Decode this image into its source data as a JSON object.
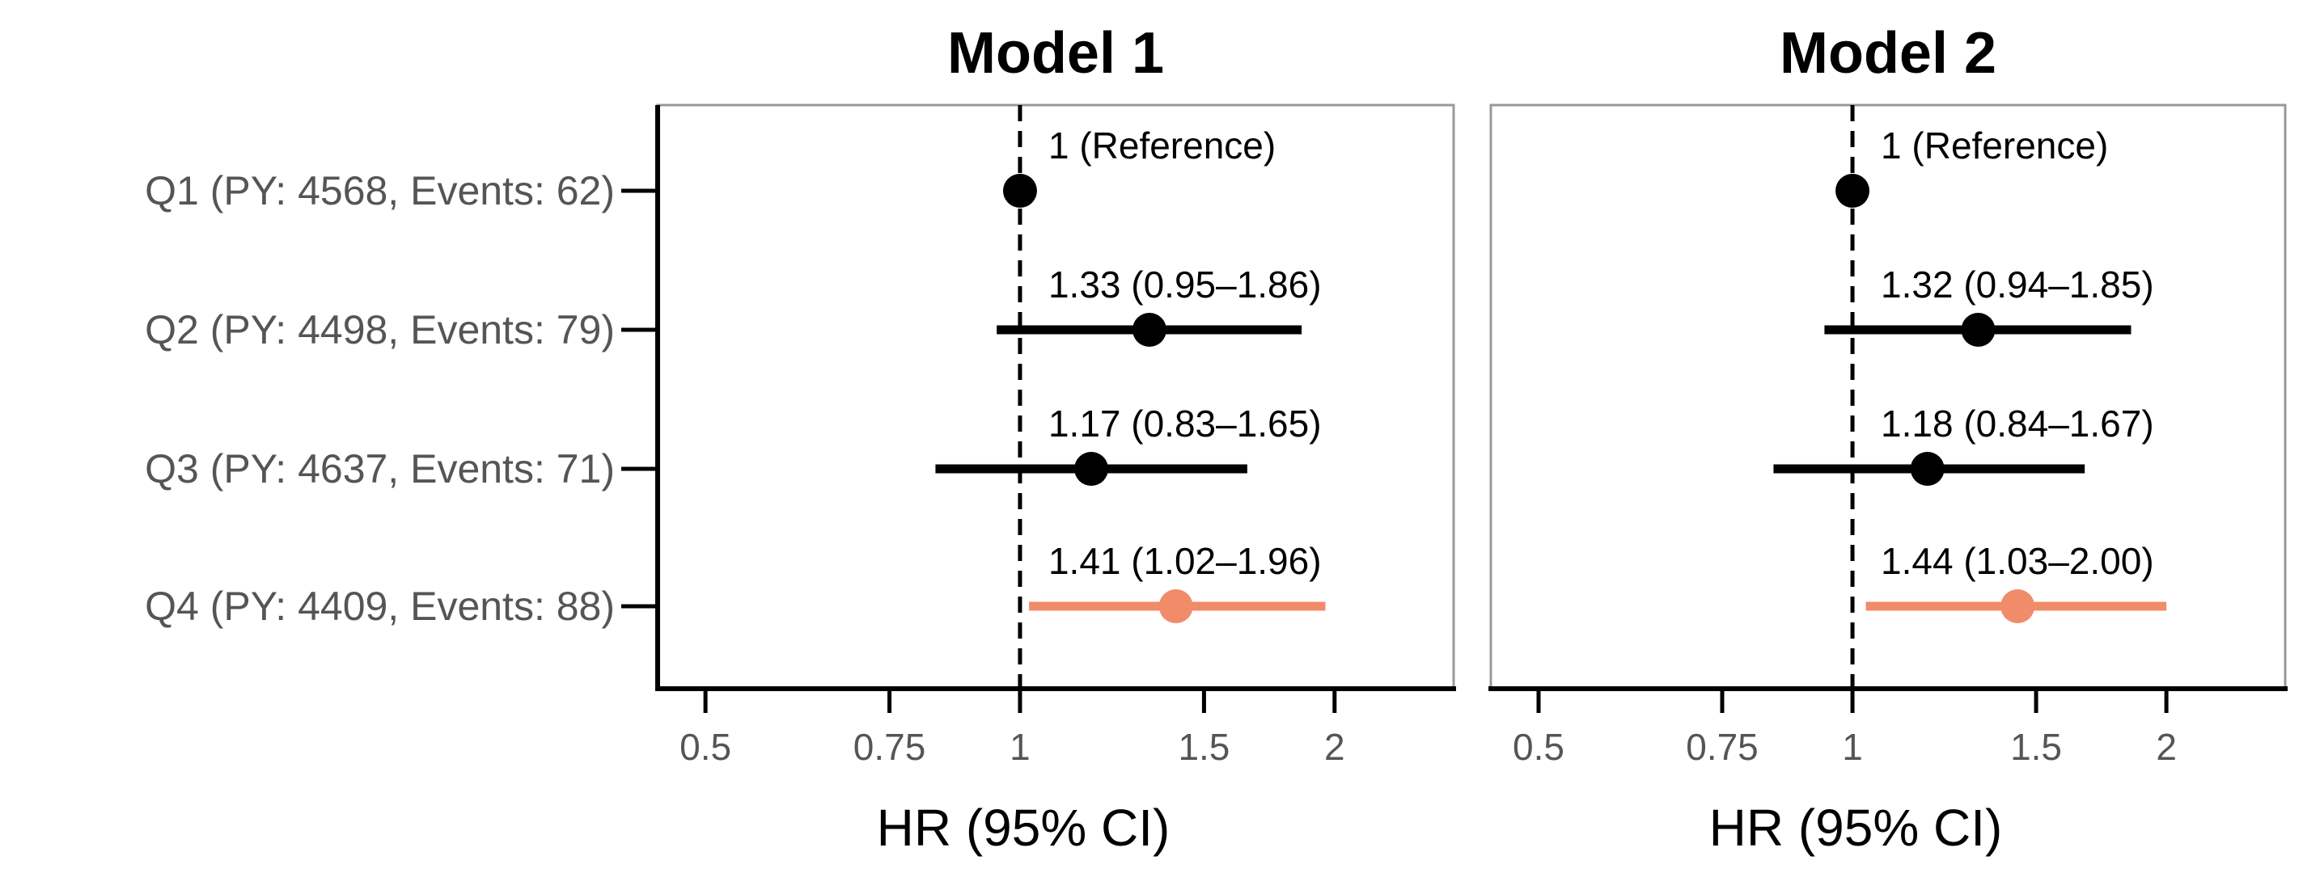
{
  "chart_data": {
    "type": "forest",
    "x_scale": "log",
    "xlim": [
      0.45,
      2.6
    ],
    "x_ticks": [
      0.5,
      0.75,
      1,
      1.5,
      2
    ],
    "x_tick_labels": [
      "0.5",
      "0.75",
      "1",
      "1.5",
      "2"
    ],
    "reference_line": 1,
    "xlabel": "HR (95% CI)",
    "row_labels": [
      "Q1 (PY: 4568, Events: 62)",
      "Q2 (PY: 4498, Events: 79)",
      "Q3 (PY: 4637, Events: 71)",
      "Q4 (PY: 4409, Events: 88)"
    ],
    "colors": {
      "default": "#000000",
      "highlight": "#F08C69",
      "frame": "#999999"
    },
    "panels": [
      {
        "title": "Model 1",
        "rows": [
          {
            "hr": 1.0,
            "lo": null,
            "hi": null,
            "label": "1 (Reference)",
            "highlight": false
          },
          {
            "hr": 1.33,
            "lo": 0.95,
            "hi": 1.86,
            "label": "1.33 (0.95–1.86)",
            "highlight": false
          },
          {
            "hr": 1.17,
            "lo": 0.83,
            "hi": 1.65,
            "label": "1.17 (0.83–1.65)",
            "highlight": false
          },
          {
            "hr": 1.41,
            "lo": 1.02,
            "hi": 1.96,
            "label": "1.41 (1.02–1.96)",
            "highlight": true
          }
        ]
      },
      {
        "title": "Model 2",
        "rows": [
          {
            "hr": 1.0,
            "lo": null,
            "hi": null,
            "label": "1 (Reference)",
            "highlight": false
          },
          {
            "hr": 1.32,
            "lo": 0.94,
            "hi": 1.85,
            "label": "1.32 (0.94–1.85)",
            "highlight": false
          },
          {
            "hr": 1.18,
            "lo": 0.84,
            "hi": 1.67,
            "label": "1.18 (0.84–1.67)",
            "highlight": false
          },
          {
            "hr": 1.44,
            "lo": 1.03,
            "hi": 2.0,
            "label": "1.44 (1.03–2.00)",
            "highlight": true
          }
        ]
      }
    ]
  }
}
